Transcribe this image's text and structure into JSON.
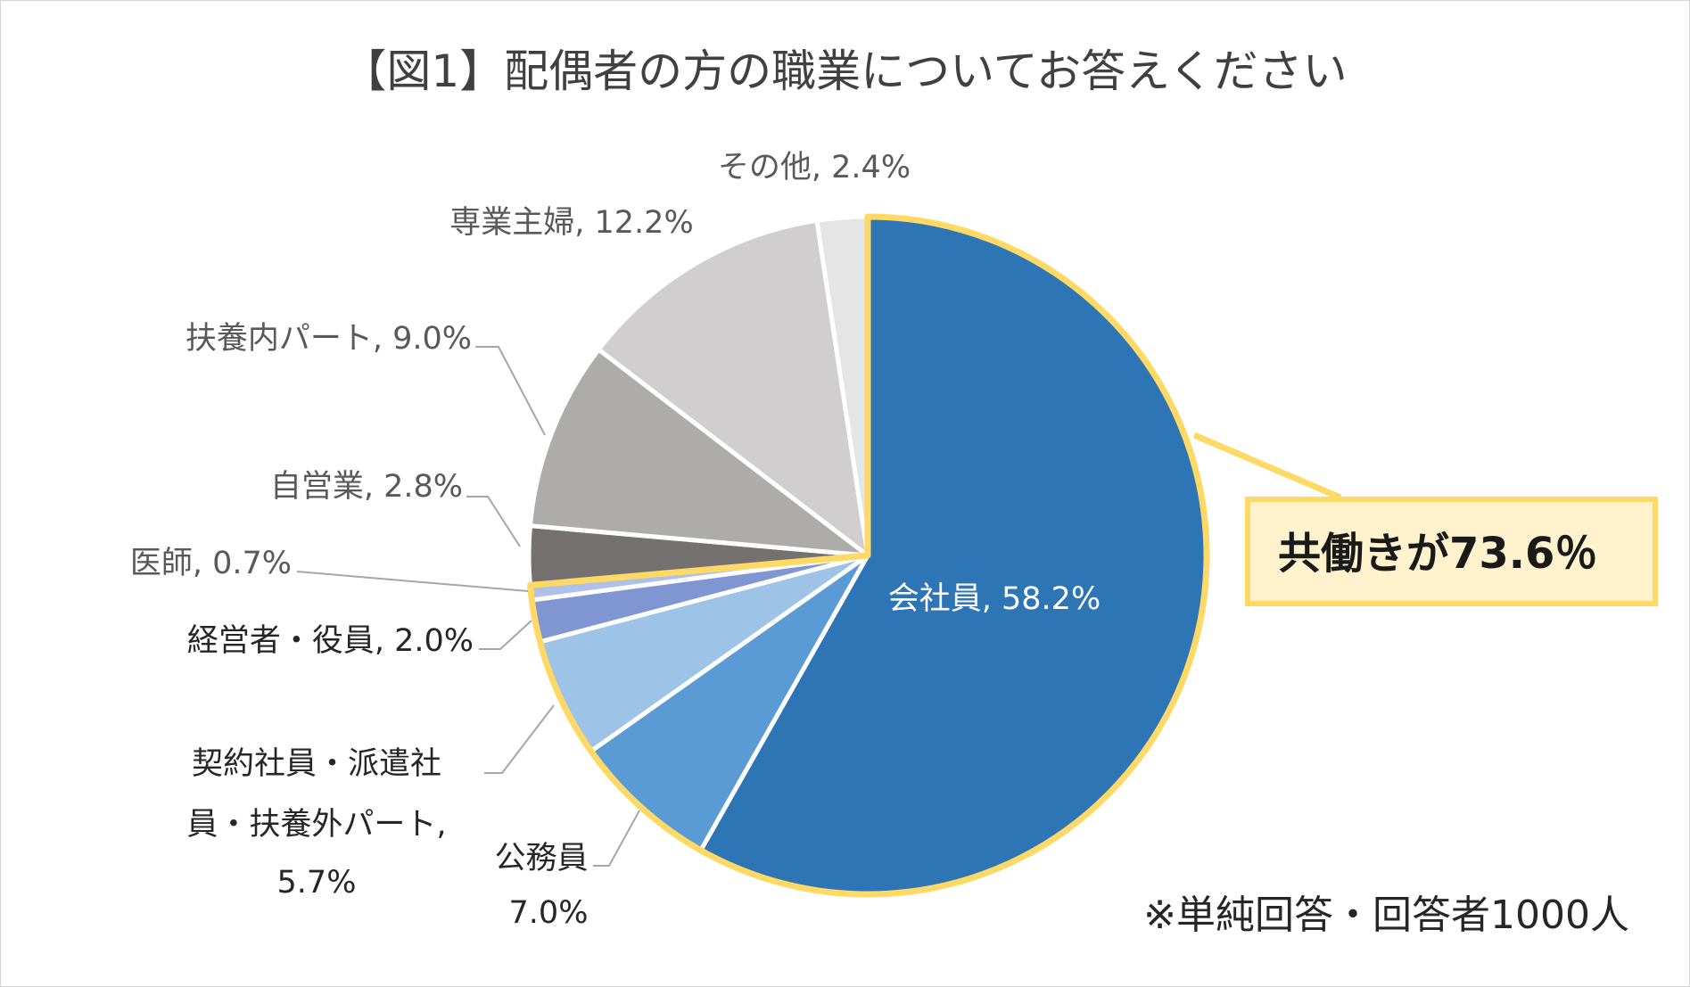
{
  "chart_data": {
    "type": "pie",
    "title": "【図1】配偶者の方の職業についてお答えください",
    "slices": [
      {
        "label": "会社員",
        "value": 58.2,
        "color": "#2E75B6",
        "text": "会社員, 58.2%"
      },
      {
        "label": "公務員",
        "value": 7.0,
        "color": "#5B9BD5",
        "text_line1": "公務員",
        "text_line2": "7.0%"
      },
      {
        "label": "契約社員・派遣社員・扶養外パート",
        "value": 5.7,
        "color": "#9DC3E6",
        "text_line1": "契約社員・派遣社",
        "text_line2": "員・扶養外パート,",
        "text_line3": "5.7%"
      },
      {
        "label": "経営者・役員",
        "value": 2.0,
        "color": "#7F96D3",
        "text": "経営者・役員, 2.0%"
      },
      {
        "label": "医師",
        "value": 0.7,
        "color": "#AFC0EA",
        "text": "医師, 0.7%"
      },
      {
        "label": "自営業",
        "value": 2.8,
        "color": "#767171",
        "text": "自営業, 2.8%"
      },
      {
        "label": "扶養内パート",
        "value": 9.0,
        "color": "#AEABAB",
        "text": "扶養内パート, 9.0%"
      },
      {
        "label": "専業主婦",
        "value": 12.2,
        "color": "#D0CECE",
        "text": "専業主婦, 12.2%"
      },
      {
        "label": "その他",
        "value": 2.4,
        "color": "#E5E5E5",
        "text": "その他, 2.4%"
      }
    ],
    "highlight_total": 73.6,
    "callout": "共働きが73.6％",
    "note": "※単純回答・回答者1000人"
  },
  "colors": {
    "highlight": "#FFD966",
    "callout_fill": "#FFF2CC",
    "leader": "#A6A6A6"
  }
}
